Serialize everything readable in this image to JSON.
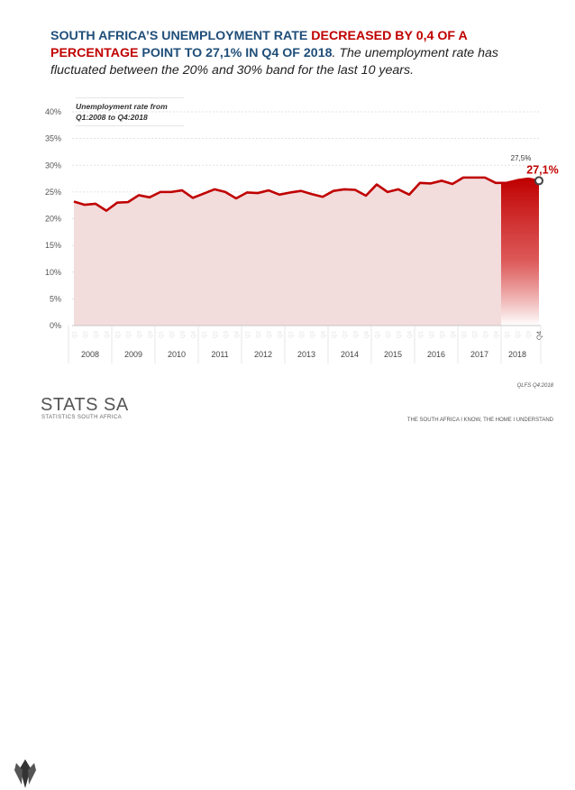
{
  "headline": {
    "part1": "SOUTH AFRICA’S UNEMPLOYMENT RATE ",
    "part2": "DECREASED BY 0,4 OF A PERCENTAGE",
    "part3": " POINT TO 27,1% IN Q4 OF 2018",
    "part4": ". The unemployment rate has fluctuated between the 20% and 30% band for the last 10 years."
  },
  "legend_note": "Unemployment rate from Q1:2008 to Q4:2018",
  "colors": {
    "area_fill": "#f2dcdc",
    "line": "#c00000",
    "highlight": "#c00000",
    "grid": "#d9d9d9"
  },
  "chart_data": {
    "type": "area",
    "title": "Unemployment rate from Q1:2008 to Q4:2018",
    "ylim": [
      0,
      40
    ],
    "yticks": [
      "0%",
      "5%",
      "10%",
      "15%",
      "20%",
      "25%",
      "30%",
      "35%",
      "40%"
    ],
    "quarters": [
      "Q1",
      "Q2",
      "Q3",
      "Q4",
      "Q1",
      "Q2",
      "Q3",
      "Q4",
      "Q1",
      "Q2",
      "Q3",
      "Q4",
      "Q1",
      "Q2",
      "Q3",
      "Q4",
      "Q1",
      "Q2",
      "Q3",
      "Q4",
      "Q1",
      "Q2",
      "Q3",
      "Q4",
      "Q1",
      "Q2",
      "Q3",
      "Q4",
      "Q1",
      "Q2",
      "Q3",
      "Q4",
      "Q1",
      "Q2",
      "Q3",
      "Q4",
      "Q1",
      "Q2",
      "Q3",
      "Q4",
      "Q1",
      "Q2",
      "Q3",
      "Q4"
    ],
    "years": [
      "2008",
      "2009",
      "2010",
      "2011",
      "2012",
      "2013",
      "2014",
      "2015",
      "2016",
      "2017",
      "2018"
    ],
    "values": [
      23.2,
      22.6,
      22.8,
      21.5,
      23.0,
      23.1,
      24.4,
      24.0,
      25.0,
      25.0,
      25.3,
      23.9,
      24.7,
      25.5,
      25.0,
      23.8,
      24.9,
      24.8,
      25.3,
      24.5,
      24.9,
      25.2,
      24.6,
      24.1,
      25.2,
      25.5,
      25.4,
      24.3,
      26.4,
      25.0,
      25.5,
      24.5,
      26.7,
      26.6,
      27.1,
      26.5,
      27.7,
      27.7,
      27.7,
      26.7,
      26.7,
      27.2,
      27.5,
      27.1
    ],
    "annotations": {
      "prev_label": "27,5%",
      "last_label": "27,1%"
    },
    "last_tick_label": "Q4"
  },
  "footer": {
    "logo_text": "STATS SA",
    "logo_sub": "STATISTICS SOUTH AFRICA",
    "source": "QLFS Q4:2018",
    "tagline": "THE SOUTH AFRICA I KNOW, THE HOME I UNDERSTAND"
  }
}
